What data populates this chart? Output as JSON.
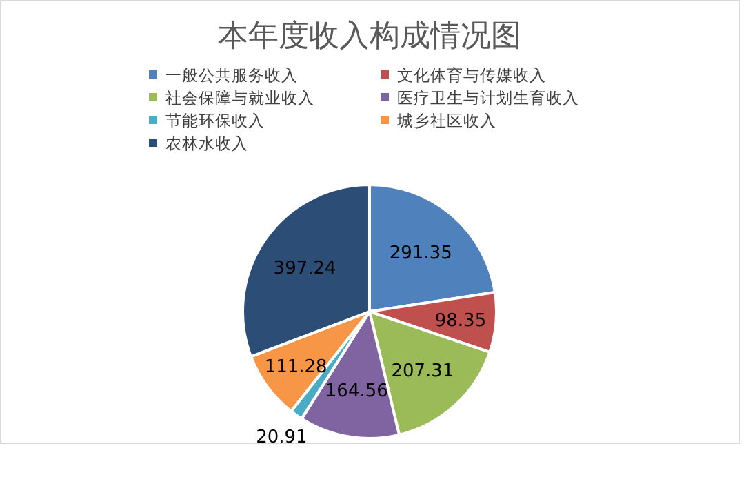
{
  "chart_data": {
    "type": "pie",
    "title": "本年度收入构成情况图",
    "categories": [
      "一般公共服务收入",
      "文化体育与传媒收入",
      "社会保障与就业收入",
      "医疗卫生与计划生育收入",
      "节能环保收入",
      "城乡社区收入",
      "农林水收入"
    ],
    "values": [
      291.35,
      98.35,
      207.31,
      164.56,
      20.91,
      111.28,
      397.24
    ],
    "colors": [
      "#4f81bd",
      "#c0504d",
      "#9bbb59",
      "#8064a2",
      "#4bacc6",
      "#f79646",
      "#2c4d75"
    ],
    "data_labels": true,
    "legend": "top"
  }
}
